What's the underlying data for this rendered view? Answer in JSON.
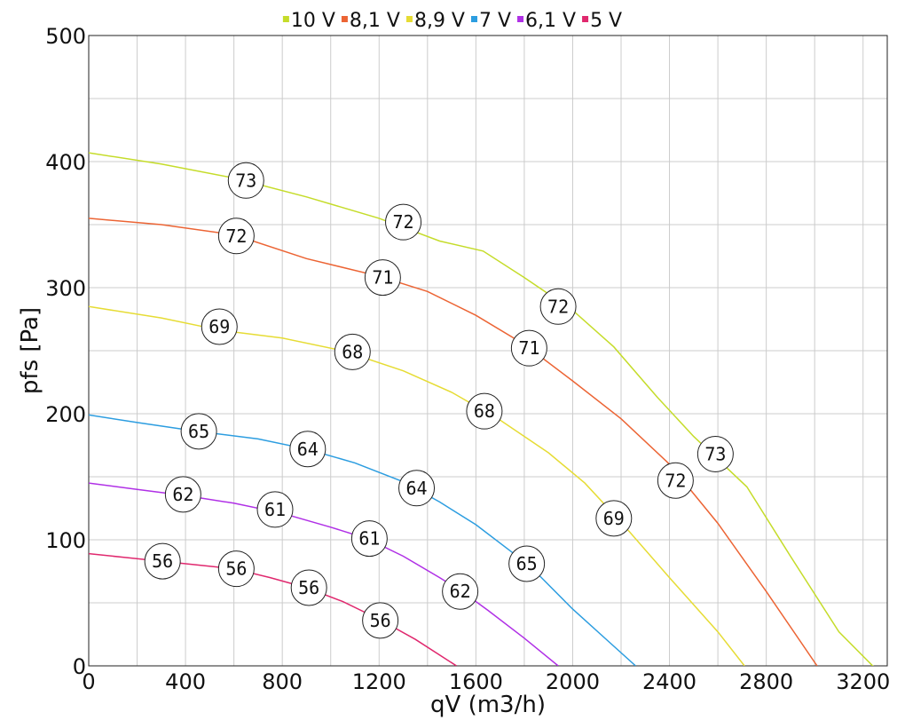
{
  "chart_data": {
    "type": "line",
    "title": "",
    "xlabel": "qV (m3/h)",
    "ylabel": "pfs [Pa]",
    "xlim": [
      0,
      3300
    ],
    "ylim": [
      0,
      500
    ],
    "xticks": [
      0,
      400,
      800,
      1200,
      1600,
      2000,
      2400,
      2800,
      3200
    ],
    "yticks": [
      0,
      100,
      200,
      300,
      400,
      500
    ],
    "x_minor_gridlines": [
      200,
      600,
      1000,
      1400,
      1800,
      2200,
      2600,
      3000
    ],
    "y_minor_gridlines": [
      50,
      150,
      250,
      350,
      450
    ],
    "grid": true,
    "legend_position": "top",
    "series": [
      {
        "name": "10 V",
        "color": "#c5dc2a",
        "points": [
          [
            0,
            407
          ],
          [
            300,
            398
          ],
          [
            600,
            387
          ],
          [
            900,
            372
          ],
          [
            1200,
            355
          ],
          [
            1450,
            337
          ],
          [
            1630,
            329
          ],
          [
            1800,
            308
          ],
          [
            2000,
            282
          ],
          [
            2170,
            253
          ],
          [
            2350,
            213
          ],
          [
            2500,
            182
          ],
          [
            2720,
            142
          ],
          [
            2900,
            87
          ],
          [
            3100,
            27
          ],
          [
            3250,
            -2
          ]
        ],
        "labels": [
          {
            "x": 650,
            "y": 385,
            "text": "73"
          },
          {
            "x": 1300,
            "y": 352,
            "text": "72"
          },
          {
            "x": 1940,
            "y": 285,
            "text": "72"
          },
          {
            "x": 2590,
            "y": 168,
            "text": "73"
          }
        ]
      },
      {
        "name": "8,1 V",
        "color": "#ec6434",
        "points": [
          [
            0,
            355
          ],
          [
            300,
            350
          ],
          [
            600,
            342
          ],
          [
            900,
            323
          ],
          [
            1200,
            309
          ],
          [
            1400,
            297
          ],
          [
            1600,
            278
          ],
          [
            1800,
            255
          ],
          [
            2000,
            226
          ],
          [
            2200,
            196
          ],
          [
            2400,
            160
          ],
          [
            2600,
            113
          ],
          [
            2800,
            59
          ],
          [
            3010,
            0
          ]
        ],
        "labels": [
          {
            "x": 610,
            "y": 341,
            "text": "72"
          },
          {
            "x": 1215,
            "y": 308,
            "text": "71"
          },
          {
            "x": 1820,
            "y": 252,
            "text": "71"
          },
          {
            "x": 2425,
            "y": 147,
            "text": "72"
          }
        ]
      },
      {
        "name": "8,9 V",
        "color": "#e6dc34",
        "points": [
          [
            0,
            285
          ],
          [
            300,
            276
          ],
          [
            550,
            266
          ],
          [
            800,
            260
          ],
          [
            1050,
            250
          ],
          [
            1300,
            234
          ],
          [
            1500,
            217
          ],
          [
            1700,
            195
          ],
          [
            1900,
            169
          ],
          [
            2050,
            145
          ],
          [
            2200,
            114
          ],
          [
            2400,
            70
          ],
          [
            2600,
            27
          ],
          [
            2710,
            0
          ]
        ],
        "labels": [
          {
            "x": 540,
            "y": 269,
            "text": "69"
          },
          {
            "x": 1090,
            "y": 249,
            "text": "68"
          },
          {
            "x": 1635,
            "y": 202,
            "text": "68"
          },
          {
            "x": 2170,
            "y": 117,
            "text": "69"
          }
        ]
      },
      {
        "name": "7 V",
        "color": "#2c9de0",
        "points": [
          [
            0,
            199
          ],
          [
            200,
            193
          ],
          [
            450,
            186
          ],
          [
            700,
            180
          ],
          [
            900,
            172
          ],
          [
            1100,
            161
          ],
          [
            1300,
            146
          ],
          [
            1450,
            130
          ],
          [
            1600,
            112
          ],
          [
            1750,
            90
          ],
          [
            1850,
            74
          ],
          [
            2000,
            45
          ],
          [
            2150,
            19
          ],
          [
            2260,
            0
          ]
        ],
        "labels": [
          {
            "x": 455,
            "y": 186,
            "text": "65"
          },
          {
            "x": 905,
            "y": 172,
            "text": "64"
          },
          {
            "x": 1355,
            "y": 141,
            "text": "64"
          },
          {
            "x": 1810,
            "y": 81,
            "text": "65"
          }
        ]
      },
      {
        "name": "6,1 V",
        "color": "#b030e6",
        "points": [
          [
            0,
            145
          ],
          [
            200,
            140
          ],
          [
            400,
            135
          ],
          [
            600,
            129
          ],
          [
            800,
            121
          ],
          [
            1000,
            110
          ],
          [
            1150,
            101
          ],
          [
            1300,
            87
          ],
          [
            1450,
            70
          ],
          [
            1550,
            58
          ],
          [
            1650,
            44
          ],
          [
            1800,
            22
          ],
          [
            1940,
            0
          ]
        ],
        "labels": [
          {
            "x": 390,
            "y": 136,
            "text": "62"
          },
          {
            "x": 770,
            "y": 124,
            "text": "61"
          },
          {
            "x": 1160,
            "y": 101,
            "text": "61"
          },
          {
            "x": 1535,
            "y": 59,
            "text": "62"
          }
        ]
      },
      {
        "name": "5 V",
        "color": "#e0286e",
        "points": [
          [
            0,
            89
          ],
          [
            150,
            86
          ],
          [
            300,
            83
          ],
          [
            450,
            80
          ],
          [
            600,
            77
          ],
          [
            750,
            70
          ],
          [
            900,
            62
          ],
          [
            1050,
            51
          ],
          [
            1200,
            37
          ],
          [
            1350,
            21
          ],
          [
            1520,
            0
          ]
        ],
        "labels": [
          {
            "x": 305,
            "y": 83,
            "text": "56"
          },
          {
            "x": 610,
            "y": 77,
            "text": "56"
          },
          {
            "x": 910,
            "y": 62,
            "text": "56"
          },
          {
            "x": 1205,
            "y": 36,
            "text": "56"
          }
        ]
      }
    ]
  }
}
